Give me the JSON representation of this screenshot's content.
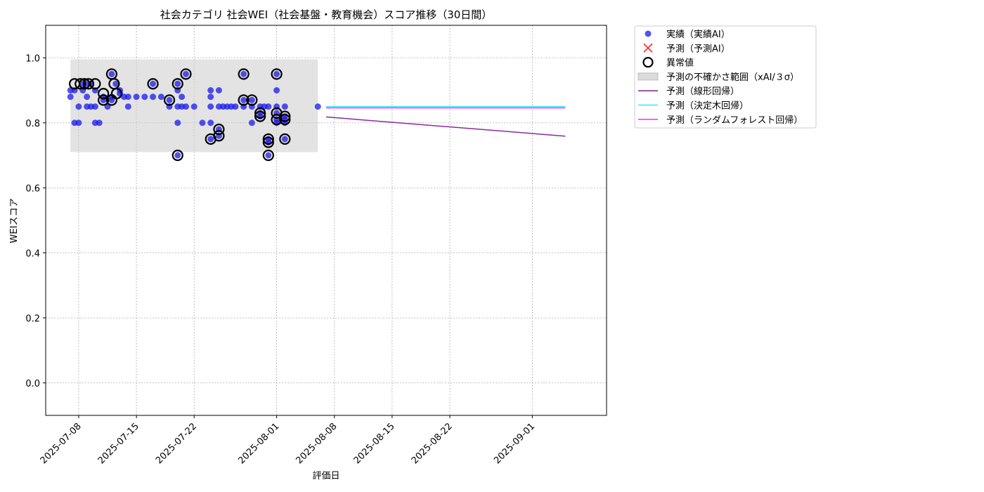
{
  "chart_data": {
    "type": "scatter",
    "title": "社会カテゴリ 社会WEI（社会基盤・教育機会）スコア推移（30日間）",
    "xlabel": "評価日",
    "ylabel": "WEIスコア",
    "xlim": [
      "2025-07-04",
      "2025-09-10"
    ],
    "ylim": [
      -0.1,
      1.1
    ],
    "yticks": [
      0.0,
      0.2,
      0.4,
      0.6,
      0.8,
      1.0
    ],
    "ytick_labels": [
      "0.0",
      "0.2",
      "0.4",
      "0.6",
      "0.8",
      "1.0"
    ],
    "xticks": [
      "2025-07-08",
      "2025-07-15",
      "2025-07-22",
      "2025-08-01",
      "2025-08-08",
      "2025-08-15",
      "2025-08-22",
      "2025-09-01"
    ],
    "grid": true,
    "legend_position": "outside-top-right",
    "colors": {
      "actual": "#1a1aee",
      "predicted": "#ff3333",
      "anomaly": "#000000",
      "band": "#cccccc",
      "linear": "#8b2a9e",
      "tree": "#33e6ff",
      "forest": "#ff33ff"
    },
    "series": [
      {
        "name": "実績（実績AI）",
        "kind": "scatter",
        "points": [
          [
            "2025-07-07",
            0.9
          ],
          [
            "2025-07-07",
            0.88
          ],
          [
            "2025-07-07.5",
            0.9
          ],
          [
            "2025-07-07.5",
            0.8
          ],
          [
            "2025-07-08",
            0.85
          ],
          [
            "2025-07-08",
            0.8
          ],
          [
            "2025-07-08.5",
            0.9
          ],
          [
            "2025-07-08.5",
            0.92
          ],
          [
            "2025-07-09",
            0.92
          ],
          [
            "2025-07-09",
            0.88
          ],
          [
            "2025-07-09",
            0.85
          ],
          [
            "2025-07-09.5",
            0.85
          ],
          [
            "2025-07-09.5",
            0.92
          ],
          [
            "2025-07-10",
            0.9
          ],
          [
            "2025-07-10",
            0.85
          ],
          [
            "2025-07-10",
            0.8
          ],
          [
            "2025-07-10.5",
            0.8
          ],
          [
            "2025-07-11",
            0.88
          ],
          [
            "2025-07-11",
            0.87
          ],
          [
            "2025-07-11.5",
            0.85
          ],
          [
            "2025-07-12",
            0.95
          ],
          [
            "2025-07-12",
            0.87
          ],
          [
            "2025-07-12",
            0.88
          ],
          [
            "2025-07-12.5",
            0.92
          ],
          [
            "2025-07-13",
            0.9
          ],
          [
            "2025-07-13",
            0.89
          ],
          [
            "2025-07-13.5",
            0.88
          ],
          [
            "2025-07-14",
            0.85
          ],
          [
            "2025-07-14",
            0.88
          ],
          [
            "2025-07-15",
            0.88
          ],
          [
            "2025-07-16",
            0.88
          ],
          [
            "2025-07-17",
            0.88
          ],
          [
            "2025-07-17",
            0.92
          ],
          [
            "2025-07-18",
            0.88
          ],
          [
            "2025-07-19",
            0.85
          ],
          [
            "2025-07-19",
            0.87
          ],
          [
            "2025-07-20",
            0.92
          ],
          [
            "2025-07-20",
            0.9
          ],
          [
            "2025-07-20",
            0.85
          ],
          [
            "2025-07-20",
            0.8
          ],
          [
            "2025-07-20",
            0.7
          ],
          [
            "2025-07-20.5",
            0.85
          ],
          [
            "2025-07-20.5",
            0.88
          ],
          [
            "2025-07-21",
            0.95
          ],
          [
            "2025-07-21",
            0.85
          ],
          [
            "2025-07-22",
            0.85
          ],
          [
            "2025-07-23",
            0.8
          ],
          [
            "2025-07-24",
            0.9
          ],
          [
            "2025-07-24",
            0.88
          ],
          [
            "2025-07-24",
            0.85
          ],
          [
            "2025-07-24",
            0.8
          ],
          [
            "2025-07-24",
            0.75
          ],
          [
            "2025-07-25",
            0.9
          ],
          [
            "2025-07-25",
            0.85
          ],
          [
            "2025-07-25",
            0.78
          ],
          [
            "2025-07-25",
            0.76
          ],
          [
            "2025-07-25.5",
            0.85
          ],
          [
            "2025-07-26",
            0.85
          ],
          [
            "2025-07-26.5",
            0.85
          ],
          [
            "2025-07-27",
            0.85
          ],
          [
            "2025-07-28",
            0.95
          ],
          [
            "2025-07-28",
            0.87
          ],
          [
            "2025-07-28",
            0.85
          ],
          [
            "2025-07-29",
            0.87
          ],
          [
            "2025-07-29",
            0.85
          ],
          [
            "2025-07-29",
            0.8
          ],
          [
            "2025-07-30",
            0.85
          ],
          [
            "2025-07-30",
            0.83
          ],
          [
            "2025-07-30",
            0.82
          ],
          [
            "2025-07-30.5",
            0.85
          ],
          [
            "2025-07-31",
            0.85
          ],
          [
            "2025-07-31",
            0.75
          ],
          [
            "2025-07-31",
            0.74
          ],
          [
            "2025-07-31",
            0.7
          ],
          [
            "2025-08-01",
            0.95
          ],
          [
            "2025-08-01",
            0.9
          ],
          [
            "2025-08-01",
            0.85
          ],
          [
            "2025-08-01",
            0.83
          ],
          [
            "2025-08-01",
            0.81
          ],
          [
            "2025-08-01",
            0.8
          ],
          [
            "2025-08-02",
            0.85
          ],
          [
            "2025-08-02",
            0.82
          ],
          [
            "2025-08-02",
            0.81
          ],
          [
            "2025-08-02",
            0.8
          ],
          [
            "2025-08-02",
            0.75
          ],
          [
            "2025-08-06",
            0.85
          ]
        ]
      },
      {
        "name": "異常値",
        "kind": "ring",
        "points": [
          [
            "2025-07-07.5",
            0.92
          ],
          [
            "2025-07-08.2",
            0.92
          ],
          [
            "2025-07-08.7",
            0.92
          ],
          [
            "2025-07-09.2",
            0.92
          ],
          [
            "2025-07-10",
            0.92
          ],
          [
            "2025-07-11",
            0.89
          ],
          [
            "2025-07-11",
            0.87
          ],
          [
            "2025-07-12",
            0.95
          ],
          [
            "2025-07-12",
            0.87
          ],
          [
            "2025-07-12.3",
            0.92
          ],
          [
            "2025-07-12.6",
            0.89
          ],
          [
            "2025-07-17",
            0.92
          ],
          [
            "2025-07-19",
            0.87
          ],
          [
            "2025-07-20",
            0.92
          ],
          [
            "2025-07-20",
            0.7
          ],
          [
            "2025-07-21",
            0.95
          ],
          [
            "2025-07-24",
            0.75
          ],
          [
            "2025-07-25",
            0.78
          ],
          [
            "2025-07-25",
            0.76
          ],
          [
            "2025-07-28",
            0.95
          ],
          [
            "2025-07-28",
            0.87
          ],
          [
            "2025-07-29",
            0.87
          ],
          [
            "2025-07-30",
            0.83
          ],
          [
            "2025-07-30",
            0.82
          ],
          [
            "2025-07-31",
            0.75
          ],
          [
            "2025-07-31",
            0.74
          ],
          [
            "2025-07-31",
            0.7
          ],
          [
            "2025-08-01",
            0.95
          ],
          [
            "2025-08-01",
            0.83
          ],
          [
            "2025-08-01",
            0.81
          ],
          [
            "2025-08-02",
            0.82
          ],
          [
            "2025-08-02",
            0.81
          ],
          [
            "2025-08-02",
            0.75
          ]
        ]
      },
      {
        "name": "予測の不確かさ範囲（xAI/３σ）",
        "kind": "band",
        "x": [
          "2025-07-07",
          "2025-08-06"
        ],
        "y": [
          0.71,
          0.995
        ]
      },
      {
        "name": "予測（線形回帰）",
        "kind": "line",
        "x": [
          "2025-08-07",
          "2025-09-05"
        ],
        "y": [
          0.818,
          0.759
        ]
      },
      {
        "name": "予測（決定木回帰）",
        "kind": "line",
        "x": [
          "2025-08-07",
          "2025-09-05"
        ],
        "y": [
          0.85,
          0.85
        ]
      },
      {
        "name": "予測（ランダムフォレスト回帰）",
        "kind": "line",
        "x": [
          "2025-08-07",
          "2025-09-05"
        ],
        "y": [
          0.846,
          0.846
        ]
      }
    ],
    "legend": [
      {
        "label": "実績（実績AI）",
        "marker": "dot"
      },
      {
        "label": "予測（予測AI）",
        "marker": "cross"
      },
      {
        "label": "異常値",
        "marker": "ring"
      },
      {
        "label": "予測の不確かさ範囲（xAI/３σ）",
        "marker": "band"
      },
      {
        "label": "予測（線形回帰）",
        "marker": "line-linear"
      },
      {
        "label": "予測（決定木回帰）",
        "marker": "line-tree"
      },
      {
        "label": "予測（ランダムフォレスト回帰）",
        "marker": "line-forest"
      }
    ]
  }
}
